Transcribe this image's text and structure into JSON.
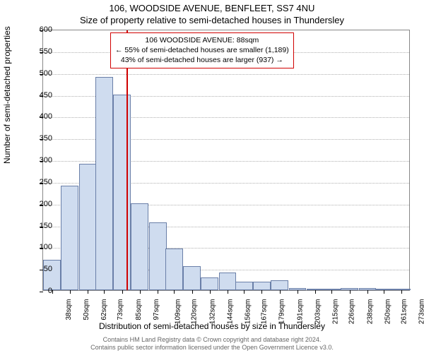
{
  "title_line1": "106, WOODSIDE AVENUE, BENFLEET, SS7 4NU",
  "title_line2": "Size of property relative to semi-detached houses in Thundersley",
  "ylabel": "Number of semi-detached properties",
  "xlabel": "Distribution of semi-detached houses by size in Thundersley",
  "footer_line1": "Contains HM Land Registry data © Crown copyright and database right 2024.",
  "footer_line2": "Contains public sector information licensed under the Open Government Licence v3.0.",
  "info_box": {
    "line1": "106 WOODSIDE AVENUE: 88sqm",
    "line2": "← 55% of semi-detached houses are smaller (1,189)",
    "line3": "43% of semi-detached houses are larger (937) →"
  },
  "chart": {
    "type": "histogram",
    "y_max": 600,
    "y_tick_step": 50,
    "categories": [
      "38sqm",
      "50sqm",
      "62sqm",
      "73sqm",
      "85sqm",
      "97sqm",
      "109sqm",
      "120sqm",
      "132sqm",
      "144sqm",
      "156sqm",
      "167sqm",
      "179sqm",
      "191sqm",
      "203sqm",
      "215sqm",
      "226sqm",
      "238sqm",
      "250sqm",
      "261sqm",
      "273sqm"
    ],
    "values": [
      70,
      240,
      290,
      490,
      450,
      200,
      155,
      95,
      55,
      30,
      40,
      20,
      20,
      22,
      5,
      3,
      2,
      5,
      5,
      4,
      3
    ],
    "bar_fill": "#cfdcef",
    "bar_border": "#6a7fa8",
    "background_color": "#ffffff",
    "grid_color": "#b0b0b0",
    "axis_color": "#888888",
    "marker_value": 88,
    "marker_color": "#d00000",
    "x_range": [
      32,
      279
    ],
    "bin_width": 11.8,
    "label_fontsize": 12,
    "tick_fontsize": 11
  }
}
